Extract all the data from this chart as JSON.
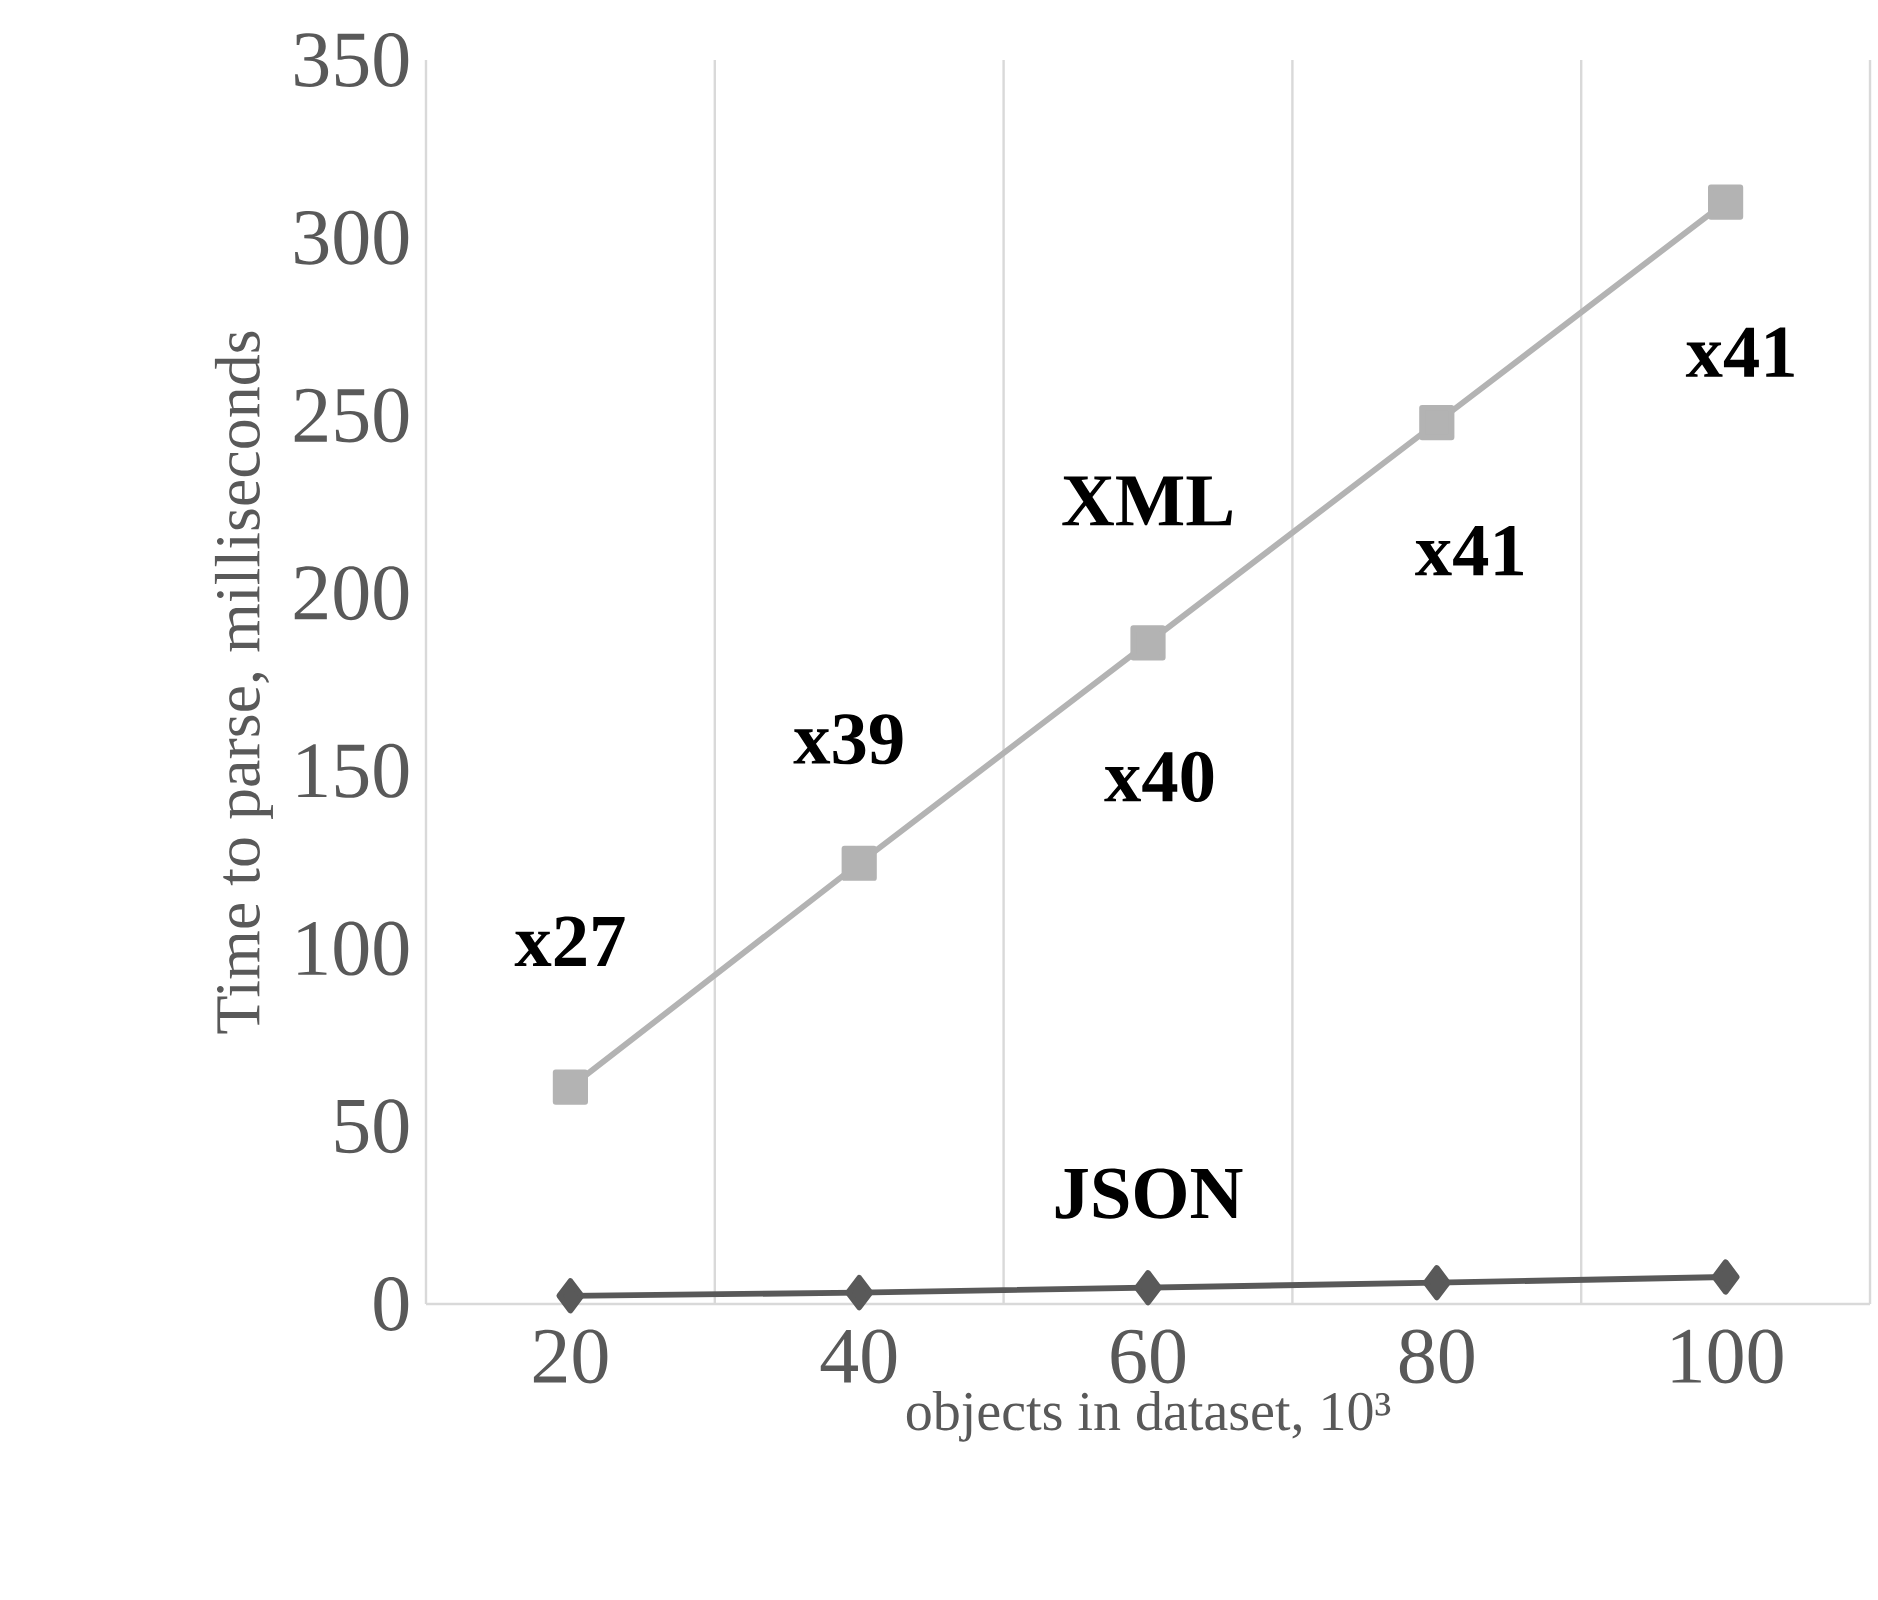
{
  "chart_data": {
    "type": "line",
    "xlabel": "objects in dataset, 10³",
    "ylabel": "Time to parse, milliseconds",
    "categories": [
      "20",
      "40",
      "60",
      "80",
      "100"
    ],
    "series": [
      {
        "name": "XML",
        "color": "#b3b3b3",
        "marker": "square",
        "values": [
          61,
          124,
          186,
          248,
          310
        ]
      },
      {
        "name": "JSON",
        "color": "#595959",
        "marker": "diamond",
        "values": [
          2.3,
          3.2,
          4.6,
          6,
          7.6
        ]
      }
    ],
    "ylim": [
      0,
      350
    ],
    "yticks": [
      0,
      50,
      100,
      150,
      200,
      250,
      300,
      350
    ],
    "grid": "x",
    "legend": false,
    "annotations": [
      "x27",
      "x39",
      "x40",
      "x41",
      "x41"
    ]
  }
}
